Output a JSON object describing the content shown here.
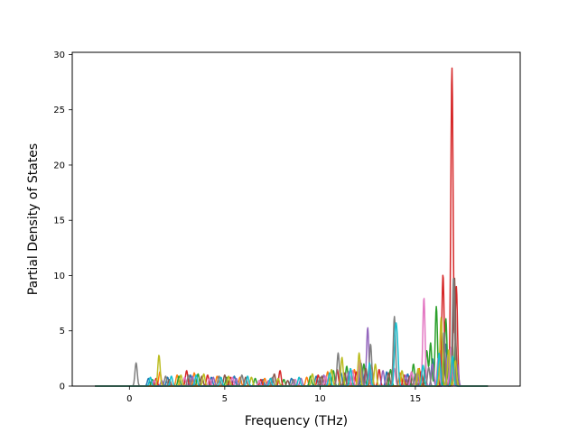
{
  "chart_data": {
    "type": "line",
    "title": "",
    "xlabel": "Frequency (THz)",
    "ylabel": "Partial Density of States",
    "xlim": [
      -3.0,
      20.5
    ],
    "ylim": [
      0,
      30.2
    ],
    "xticks": [
      0,
      5,
      10,
      15
    ],
    "yticks": [
      0,
      5,
      10,
      15,
      20,
      25,
      30
    ],
    "xtick_labels": [
      "0",
      "5",
      "10",
      "15"
    ],
    "ytick_labels": [
      "0",
      "5",
      "10",
      "15",
      "20",
      "25",
      "30"
    ],
    "grid": false,
    "legend": "none",
    "baseline_range": [
      -1.8,
      18.8
    ],
    "series": [
      {
        "color": "#1f77b4",
        "peaks": [
          [
            1.0,
            0.7
          ],
          [
            2.0,
            0.8
          ],
          [
            3.2,
            1.0
          ],
          [
            4.3,
            0.8
          ],
          [
            5.5,
            0.9
          ],
          [
            7.0,
            0.6
          ],
          [
            8.5,
            0.7
          ],
          [
            9.8,
            0.9
          ],
          [
            11.1,
            1.2
          ],
          [
            12.2,
            1.5
          ],
          [
            13.5,
            1.3
          ],
          [
            14.6,
            1.1
          ],
          [
            15.9,
            2.5
          ],
          [
            16.6,
            3.8
          ],
          [
            17.0,
            2.2
          ]
        ]
      },
      {
        "color": "#ff7f0e",
        "peaks": [
          [
            1.6,
            1.3
          ],
          [
            2.5,
            1.0
          ],
          [
            3.4,
            1.2
          ],
          [
            4.6,
            0.9
          ],
          [
            5.8,
            0.8
          ],
          [
            7.1,
            0.7
          ],
          [
            9.3,
            0.8
          ],
          [
            10.4,
            1.3
          ],
          [
            11.8,
            1.5
          ],
          [
            12.7,
            1.9
          ],
          [
            14.2,
            1.2
          ],
          [
            15.2,
            1.6
          ],
          [
            16.3,
            3.2
          ],
          [
            17.0,
            2.0
          ]
        ]
      },
      {
        "color": "#2ca02c",
        "peaks": [
          [
            1.2,
            0.6
          ],
          [
            2.6,
            0.9
          ],
          [
            3.6,
            1.1
          ],
          [
            5.1,
            0.8
          ],
          [
            6.6,
            0.7
          ],
          [
            8.1,
            0.6
          ],
          [
            9.5,
            0.9
          ],
          [
            10.7,
            1.4
          ],
          [
            11.4,
            1.8
          ],
          [
            12.3,
            2.0
          ],
          [
            13.7,
            1.5
          ],
          [
            14.9,
            2.0
          ],
          [
            15.6,
            3.2
          ],
          [
            15.8,
            3.9
          ],
          [
            16.1,
            7.2
          ],
          [
            16.6,
            6.1
          ],
          [
            17.1,
            4.0
          ]
        ]
      },
      {
        "color": "#d62728",
        "peaks": [
          [
            1.4,
            0.7
          ],
          [
            3.0,
            1.4
          ],
          [
            4.1,
            1.0
          ],
          [
            5.3,
            0.8
          ],
          [
            6.9,
            0.6
          ],
          [
            7.9,
            1.4
          ],
          [
            9.9,
            1.0
          ],
          [
            10.9,
            1.5
          ],
          [
            11.9,
            1.3
          ],
          [
            13.1,
            1.5
          ],
          [
            14.4,
            1.0
          ],
          [
            15.3,
            1.3
          ],
          [
            16.45,
            10.1
          ],
          [
            16.92,
            28.8
          ],
          [
            17.15,
            9.0
          ]
        ]
      },
      {
        "color": "#9467bd",
        "peaks": [
          [
            1.7,
            0.5
          ],
          [
            3.3,
            0.9
          ],
          [
            4.4,
            0.8
          ],
          [
            5.6,
            0.7
          ],
          [
            7.3,
            0.5
          ],
          [
            9.0,
            0.7
          ],
          [
            10.2,
            1.0
          ],
          [
            11.5,
            1.3
          ],
          [
            12.5,
            5.3
          ],
          [
            13.3,
            1.4
          ],
          [
            14.5,
            1.0
          ],
          [
            15.1,
            1.2
          ],
          [
            15.9,
            2.0
          ],
          [
            16.7,
            2.8
          ],
          [
            17.2,
            2.0
          ]
        ]
      },
      {
        "color": "#8c564b",
        "peaks": [
          [
            2.1,
            0.6
          ],
          [
            3.8,
            0.9
          ],
          [
            5.0,
            1.0
          ],
          [
            6.1,
            0.8
          ],
          [
            7.6,
            1.1
          ],
          [
            8.3,
            0.5
          ],
          [
            10.1,
            0.9
          ],
          [
            11.3,
            1.2
          ],
          [
            12.4,
            1.6
          ],
          [
            13.6,
            1.2
          ],
          [
            14.7,
            0.9
          ],
          [
            15.5,
            1.4
          ],
          [
            16.5,
            4.5
          ],
          [
            17.05,
            9.9
          ]
        ]
      },
      {
        "color": "#e377c2",
        "peaks": [
          [
            1.3,
            0.5
          ],
          [
            2.9,
            0.8
          ],
          [
            4.2,
            0.7
          ],
          [
            5.4,
            0.8
          ],
          [
            6.8,
            0.5
          ],
          [
            8.7,
            0.6
          ],
          [
            10.3,
            0.9
          ],
          [
            11.7,
            1.4
          ],
          [
            12.1,
            2.4
          ],
          [
            13.9,
            1.6
          ],
          [
            14.8,
            1.3
          ],
          [
            15.45,
            8.0
          ],
          [
            16.2,
            2.5
          ],
          [
            16.85,
            3.5
          ]
        ]
      },
      {
        "color": "#7f7f7f",
        "peaks": [
          [
            0.35,
            2.1
          ],
          [
            1.9,
            0.9
          ],
          [
            3.1,
            1.0
          ],
          [
            4.7,
            0.9
          ],
          [
            5.9,
            1.0
          ],
          [
            7.5,
            0.8
          ],
          [
            8.6,
            0.6
          ],
          [
            10.0,
            0.8
          ],
          [
            10.95,
            3.0
          ],
          [
            12.15,
            2.1
          ],
          [
            12.65,
            3.8
          ],
          [
            13.9,
            6.3
          ],
          [
            15.0,
            1.1
          ],
          [
            15.7,
            1.7
          ],
          [
            16.5,
            4.9
          ],
          [
            17.0,
            9.8
          ]
        ]
      },
      {
        "color": "#bcbd22",
        "peaks": [
          [
            1.55,
            2.8
          ],
          [
            2.7,
            1.0
          ],
          [
            3.9,
            1.1
          ],
          [
            5.2,
            0.9
          ],
          [
            6.4,
            0.8
          ],
          [
            7.8,
            0.7
          ],
          [
            9.6,
            1.1
          ],
          [
            10.6,
            1.5
          ],
          [
            11.15,
            2.6
          ],
          [
            12.05,
            3.0
          ],
          [
            12.9,
            2.0
          ],
          [
            14.3,
            1.4
          ],
          [
            15.15,
            1.6
          ],
          [
            16.35,
            6.2
          ],
          [
            16.75,
            3.3
          ],
          [
            17.1,
            2.3
          ]
        ]
      },
      {
        "color": "#17becf",
        "peaks": [
          [
            1.1,
            0.8
          ],
          [
            2.2,
            0.9
          ],
          [
            3.5,
            1.0
          ],
          [
            4.8,
            0.8
          ],
          [
            6.2,
            0.9
          ],
          [
            7.4,
            0.7
          ],
          [
            8.9,
            0.8
          ],
          [
            10.5,
            1.2
          ],
          [
            11.6,
            1.6
          ],
          [
            12.6,
            2.1
          ],
          [
            13.95,
            4.5
          ],
          [
            14.05,
            3.5
          ],
          [
            15.4,
            1.9
          ],
          [
            16.25,
            3.0
          ],
          [
            16.95,
            2.7
          ]
        ]
      }
    ]
  }
}
